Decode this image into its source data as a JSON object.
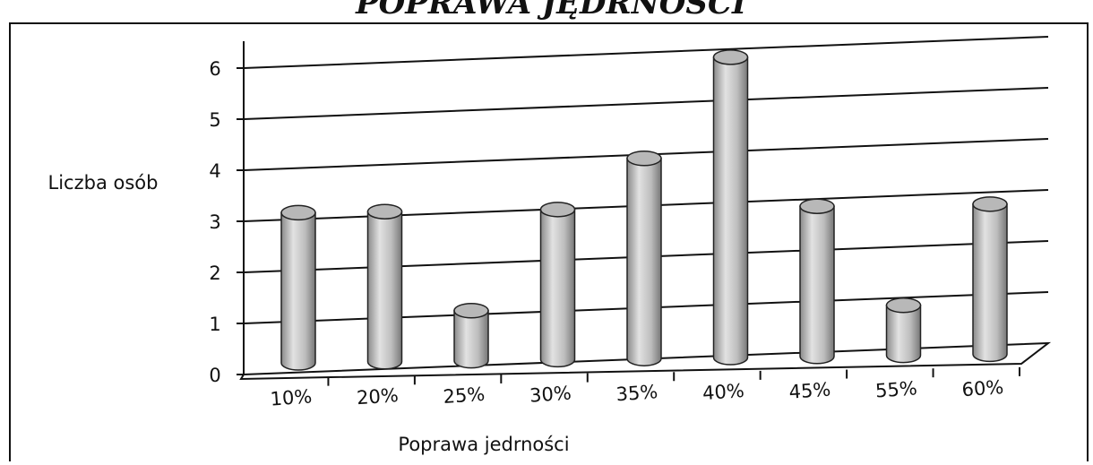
{
  "chart_data": {
    "type": "bar3d",
    "title": "POPRAWA JĘDRNOŚCI",
    "x_label": "Poprawa jedrności",
    "y_label": "Liczba osób",
    "categories": [
      "10%",
      "20%",
      "25%",
      "30%",
      "35%",
      "40%",
      "45%",
      "55%",
      "60%"
    ],
    "values": [
      3,
      3,
      1,
      3,
      4,
      6,
      3,
      1,
      3
    ],
    "color": "#b8b8b8",
    "ylim": [
      0,
      6
    ],
    "yticks": [
      0,
      1,
      2,
      3,
      4,
      5,
      6
    ],
    "grid": true
  }
}
